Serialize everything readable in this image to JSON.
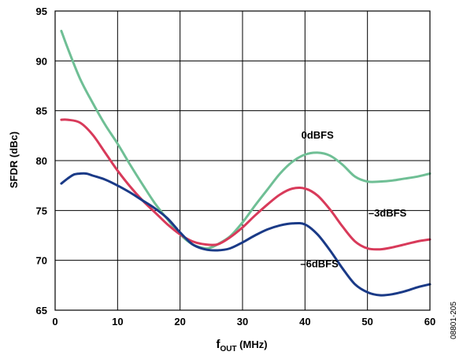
{
  "figure_id": "08801-205",
  "chart_data": {
    "type": "line",
    "title": "",
    "xlabel": "f",
    "xlabel_subscript": "OUT",
    "xlabel_suffix": " (MHz)",
    "ylabel": "SFDR (dBc)",
    "xlim": [
      0,
      60
    ],
    "ylim": [
      65,
      95
    ],
    "xticks": [
      0,
      10,
      20,
      30,
      40,
      50,
      60
    ],
    "yticks": [
      65,
      70,
      75,
      80,
      85,
      90,
      95
    ],
    "xtick_labels": [
      "0",
      "10",
      "20",
      "30",
      "40",
      "50",
      "60"
    ],
    "ytick_labels": [
      "65",
      "70",
      "75",
      "80",
      "85",
      "90",
      "95"
    ],
    "grid": true,
    "legend": "none",
    "series": [
      {
        "name": "0dBFS",
        "color": "#6fbf95",
        "x": [
          1,
          2,
          4,
          6,
          8,
          10,
          12,
          14,
          16,
          18,
          20,
          22,
          24,
          25,
          26,
          28,
          30,
          32,
          34,
          36,
          38,
          40,
          42,
          44,
          46,
          48,
          50,
          52,
          54,
          56,
          58,
          60
        ],
        "y": [
          93,
          91.3,
          88.2,
          85.8,
          83.6,
          81.7,
          79.6,
          77.6,
          75.7,
          74.1,
          72.6,
          71.6,
          71.2,
          71.3,
          71.6,
          72.4,
          73.8,
          75.5,
          77.1,
          78.7,
          79.9,
          80.6,
          80.8,
          80.5,
          79.6,
          78.4,
          77.9,
          77.9,
          78.0,
          78.2,
          78.4,
          78.7
        ]
      },
      {
        "name": "–3dBFS",
        "color": "#d83a5a",
        "x": [
          1,
          2,
          4,
          6,
          8,
          10,
          12,
          14,
          16,
          18,
          20,
          22,
          24,
          26,
          28,
          30,
          32,
          34,
          36,
          38,
          40,
          42,
          44,
          46,
          48,
          50,
          52,
          54,
          56,
          58,
          60
        ],
        "y": [
          84.1,
          84.1,
          83.8,
          82.6,
          80.8,
          79.0,
          77.4,
          76.0,
          74.8,
          73.6,
          72.6,
          71.9,
          71.6,
          71.6,
          72.3,
          73.3,
          74.5,
          75.6,
          76.6,
          77.2,
          77.2,
          76.5,
          75.1,
          73.4,
          71.9,
          71.2,
          71.1,
          71.3,
          71.6,
          71.9,
          72.1
        ]
      },
      {
        "name": "–6dBFS",
        "color": "#1a3a87",
        "x": [
          1,
          2,
          3,
          4,
          5,
          6,
          8,
          10,
          12,
          14,
          16,
          18,
          20,
          22,
          24,
          26,
          28,
          30,
          32,
          34,
          36,
          38,
          40,
          42,
          44,
          46,
          48,
          50,
          52,
          54,
          56,
          58,
          60
        ],
        "y": [
          77.7,
          78.2,
          78.6,
          78.7,
          78.7,
          78.5,
          78.1,
          77.5,
          76.8,
          76.0,
          75.2,
          74.2,
          72.8,
          71.6,
          71.1,
          71.0,
          71.2,
          71.8,
          72.5,
          73.1,
          73.5,
          73.7,
          73.6,
          72.6,
          71.0,
          69.2,
          67.6,
          66.8,
          66.5,
          66.6,
          66.9,
          67.3,
          67.6
        ]
      }
    ],
    "annotations": [
      {
        "text": "0dBFS",
        "x": 42,
        "y": 82.2
      },
      {
        "text": "–3dBFS",
        "x": 53.2,
        "y": 74.4
      },
      {
        "text": "–6dBFS",
        "x": 42.3,
        "y": 69.3
      }
    ]
  }
}
